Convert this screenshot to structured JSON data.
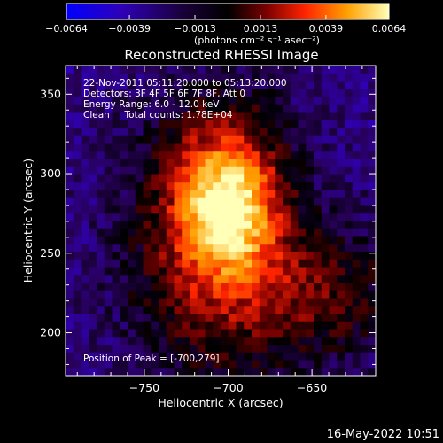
{
  "chart_data": {
    "type": "heatmap",
    "title": "Reconstructed RHESSI Image",
    "xlabel": "Heliocentric X (arcsec)",
    "ylabel": "Heliocentric Y (arcsec)",
    "xlim": [
      -797,
      -612
    ],
    "ylim": [
      173,
      368
    ],
    "x_ticks": [
      -750,
      -700,
      -650
    ],
    "x_tick_labels": [
      "−750",
      "−700",
      "−650"
    ],
    "y_ticks": [
      200,
      250,
      300,
      350
    ],
    "y_tick_labels": [
      "200",
      "250",
      "300",
      "350"
    ],
    "colorbar": {
      "min": -0.0064,
      "max": 0.0064,
      "ticks": [
        -0.0064,
        -0.0039,
        -0.0013,
        0.0013,
        0.0039,
        0.0064
      ],
      "tick_labels": [
        "−0.0064",
        "−0.0039",
        "−0.0013",
        "0.0013",
        "0.0039",
        "0.0064"
      ],
      "units_label": "(photons cm⁻² s⁻¹ asec⁻²)"
    },
    "annotations": [
      "22-Nov-2011 05:11:20.000 to 05:13:20.000",
      "Detectors: 3F 4F 5F 6F 7F 8F, Att 0",
      "Energy Range: 6.0 - 12.0 keV",
      "Clean     Total counts: 1.78E+04"
    ],
    "peak_label": "Position of Peak = [-700,279]",
    "peak": [
      -700,
      279
    ],
    "colormap": [
      "#0000ff",
      "#3000a0",
      "#000000",
      "#8a0000",
      "#ff2a00",
      "#ffa800",
      "#ffffb0"
    ]
  },
  "footer": {
    "date": "16-May-2022 10:51"
  }
}
